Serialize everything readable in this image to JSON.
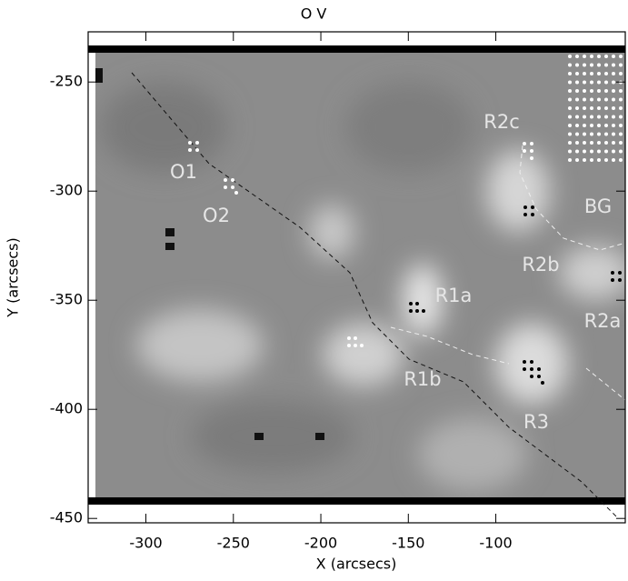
{
  "chart_data": {
    "type": "image",
    "title": "O V",
    "x_label": "X (arcsecs)",
    "y_label": "Y (arcsecs)",
    "xlim": [
      -333,
      -26
    ],
    "ylim": [
      -452,
      -227
    ],
    "xticks": [
      -300,
      -250,
      -200,
      -150,
      -100
    ],
    "yticks": [
      -250,
      -300,
      -350,
      -400,
      -450
    ],
    "annotations": [
      "O1",
      "O2",
      "R2c",
      "BG",
      "R2b",
      "R1a",
      "R2a",
      "R1b",
      "R3"
    ]
  }
}
